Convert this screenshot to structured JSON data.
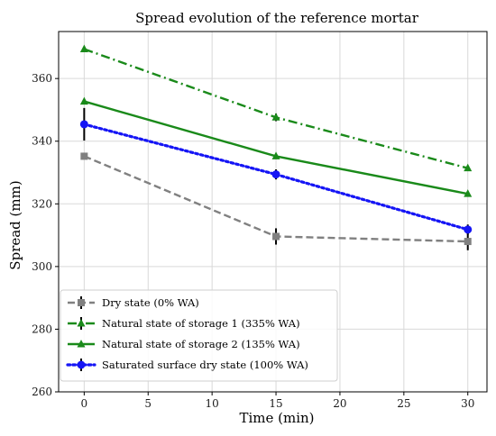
{
  "chart_data": {
    "type": "line",
    "title": "Spread evolution of the reference mortar",
    "xlabel": "Time (min)",
    "ylabel": "Spread (mm)",
    "xlim": [
      -2,
      31.5
    ],
    "ylim": [
      260,
      375
    ],
    "xticks": [
      0,
      5,
      10,
      15,
      20,
      25,
      30
    ],
    "yticks": [
      260,
      280,
      300,
      320,
      340,
      360
    ],
    "grid": true,
    "legend_position": "lower-left",
    "x": [
      0,
      15,
      30
    ],
    "series": [
      {
        "name": "Dry state (0% WA)",
        "values": [
          335.2,
          309.6,
          308.0
        ],
        "errors": [
          0,
          2.6,
          2.8
        ],
        "color": "#808080",
        "linestyle": "dashed",
        "marker": "square"
      },
      {
        "name": "Natural state of storage 1 (335% WA)",
        "values": [
          369.4,
          347.6,
          331.4
        ],
        "errors": [
          0,
          1.2,
          0
        ],
        "color": "#1a8a1a",
        "linestyle": "dashdot",
        "marker": "triangle"
      },
      {
        "name": "Natural state of storage 2 (135% WA)",
        "values": [
          352.7,
          335.2,
          323.2
        ],
        "errors": [
          0,
          0,
          0
        ],
        "color": "#1a8a1a",
        "linestyle": "solid",
        "marker": "triangle"
      },
      {
        "name": "Saturated surface dry state (100% WA)",
        "values": [
          345.4,
          329.4,
          311.8
        ],
        "errors": [
          5.2,
          1.6,
          1.6
        ],
        "color": "#1515f5",
        "linestyle": "dotted",
        "marker": "circle"
      }
    ]
  }
}
